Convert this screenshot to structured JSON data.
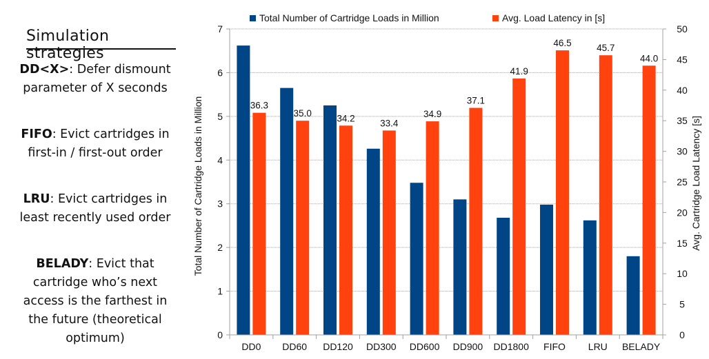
{
  "sidebar": {
    "title": "Simulation strategies",
    "strategies": [
      {
        "name": "DD<X>",
        "description": ": Defer dismount parameter of X seconds"
      },
      {
        "name": "FIFO",
        "description": ": Evict cartridges in first-in / first-out order"
      },
      {
        "name": "LRU",
        "description": ": Evict cartridges in least recently used order"
      },
      {
        "name": "BELADY",
        "description": ": Evict that cartridge who’s next access is the farthest in the future (theoretical optimum)"
      }
    ]
  },
  "chart_data": {
    "type": "bar",
    "categories": [
      "DD0",
      "DD60",
      "DD120",
      "DD300",
      "DD600",
      "DD900",
      "DD1800",
      "FIFO",
      "LRU",
      "BELADY"
    ],
    "series": [
      {
        "name": "Total Number of Cartridge Loads in Million",
        "axis": "left",
        "color": "#004586",
        "values": [
          6.62,
          5.65,
          5.25,
          4.26,
          3.48,
          3.1,
          2.68,
          2.98,
          2.62,
          1.8
        ]
      },
      {
        "name": "Avg. Load Latency in [s]",
        "axis": "right",
        "color": "#ff420e",
        "values": [
          36.3,
          35.0,
          34.2,
          33.4,
          34.9,
          37.1,
          41.9,
          46.5,
          45.7,
          44.0
        ],
        "data_labels": [
          "36.3",
          "35.0",
          "34.2",
          "33.4",
          "34.9",
          "37.1",
          "41.9",
          "46.5",
          "45.7",
          "44.0"
        ]
      }
    ],
    "ylabel": "Total Number of Cartridge Loads in Million",
    "ylim": [
      0,
      7
    ],
    "yticks": [
      0,
      1,
      2,
      3,
      4,
      5,
      6,
      7
    ],
    "y2label": "Avg. Cartridge Load Latency [s]",
    "y2lim": [
      0,
      50
    ],
    "y2ticks": [
      0,
      5,
      10,
      15,
      20,
      25,
      30,
      35,
      40,
      45,
      50
    ],
    "grid": true,
    "legend_position": "top"
  }
}
